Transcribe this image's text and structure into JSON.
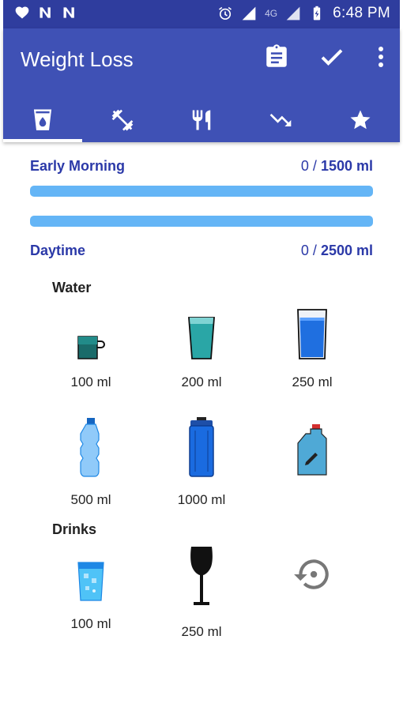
{
  "status_bar": {
    "network_label": "4G",
    "time": "6:48 PM"
  },
  "app_bar": {
    "title": "Weight Loss",
    "actions": [
      "clipboard-icon",
      "check-icon",
      "more-vert-icon"
    ],
    "tabs": [
      {
        "icon": "water-glass-icon",
        "active": true
      },
      {
        "icon": "dumbbell-icon",
        "active": false
      },
      {
        "icon": "fork-knife-icon",
        "active": false
      },
      {
        "icon": "trending-down-icon",
        "active": false
      },
      {
        "icon": "star-icon",
        "active": false
      }
    ]
  },
  "early_morning": {
    "label": "Early Morning",
    "current": "0",
    "separator": " / ",
    "goal": "1500 ml",
    "progress": 0
  },
  "daytime": {
    "label": "Daytime",
    "current": "0",
    "separator": " / ",
    "goal": "2500 ml",
    "progress": 0
  },
  "water": {
    "label": "Water",
    "items": [
      {
        "icon": "mug-icon",
        "label": "100 ml"
      },
      {
        "icon": "glass-icon",
        "label": "200 ml"
      },
      {
        "icon": "tall-glass-icon",
        "label": "250 ml"
      },
      {
        "icon": "plastic-bottle-icon",
        "label": "500 ml"
      },
      {
        "icon": "sports-bottle-icon",
        "label": "1000 ml"
      },
      {
        "icon": "custom-jug-icon",
        "label": ""
      }
    ]
  },
  "drinks": {
    "label": "Drinks",
    "items": [
      {
        "icon": "soda-glass-icon",
        "label": "100 ml"
      },
      {
        "icon": "wine-glass-icon",
        "label": "250 ml"
      },
      {
        "icon": "history-icon",
        "label": ""
      }
    ]
  },
  "colors": {
    "status_bar": "#2f3d9e",
    "app_bar": "#3f51b5",
    "accent_text": "#2b39a8",
    "progress_track": "#64b5f6"
  }
}
